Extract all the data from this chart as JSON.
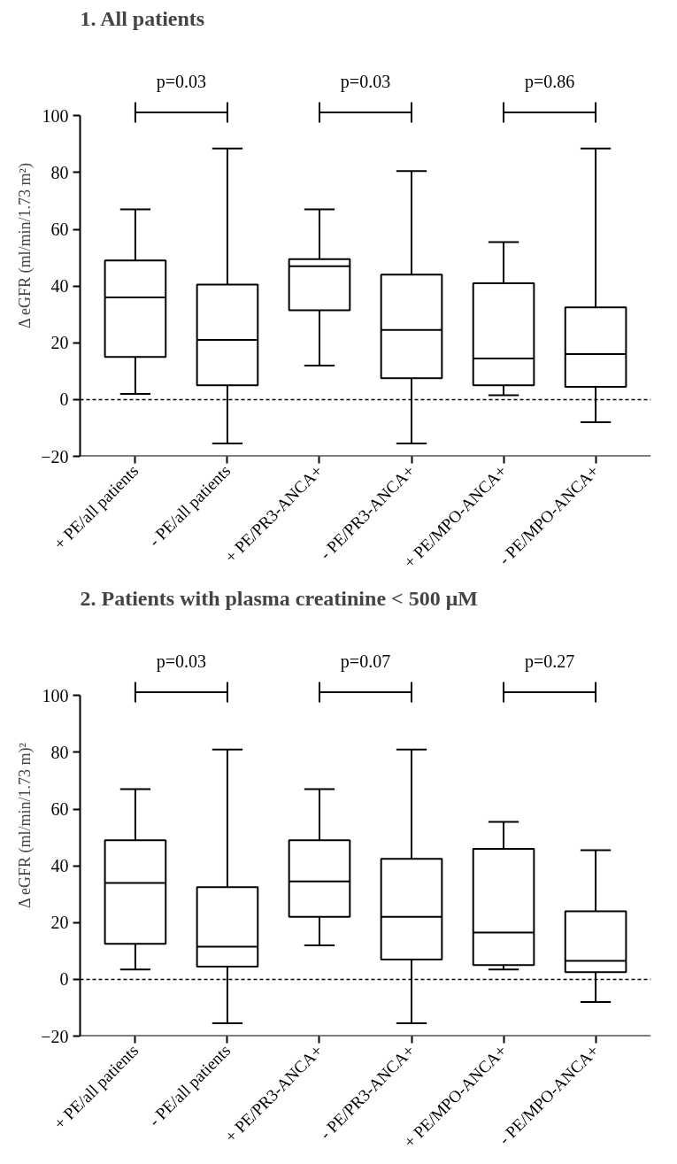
{
  "chart_data": [
    {
      "type": "box",
      "title": "1.          All patients",
      "ylabel": "Δ eGFR (ml/min/1.73 m²)",
      "categories": [
        "+ PE/all patients",
        "- PE/all patients",
        "+ PE/PR3-ANCA+",
        "- PE/PR3-ANCA+",
        "+ PE/MPO-ANCA+",
        "- PE/MPO-ANCA+"
      ],
      "boxes": [
        {
          "low": 2,
          "q1": 15,
          "median": 36,
          "q3": 49,
          "high": 67
        },
        {
          "low": -15.5,
          "q1": 5,
          "median": 21,
          "q3": 40.5,
          "high": 88.5
        },
        {
          "low": 12,
          "q1": 31.5,
          "median": 47,
          "q3": 49.5,
          "high": 67
        },
        {
          "low": -15.5,
          "q1": 7.5,
          "median": 24.5,
          "q3": 44,
          "high": 80.5
        },
        {
          "low": 1.5,
          "q1": 5,
          "median": 14.5,
          "q3": 41,
          "high": 55.5
        },
        {
          "low": -8,
          "q1": 4.5,
          "median": 16,
          "q3": 32.5,
          "high": 88.5
        }
      ],
      "ylim": [
        -20,
        100
      ],
      "yticks": [
        -20,
        0,
        20,
        40,
        60,
        80,
        100
      ],
      "grid": false,
      "ref_lines": [
        {
          "axis": "y",
          "value": 0,
          "line_style": "dashed"
        }
      ],
      "annotations": [
        "p=0.03",
        "p=0.03",
        "p=0.86"
      ]
    },
    {
      "type": "box",
      "title": "2.          Patients with plasma creatinine < 500 μM",
      "ylabel": "Δ eGFR (ml/min/1.73 m)²",
      "categories": [
        "+ PE/all patients",
        "- PE/all patients",
        "+ PE/PR3-ANCA+",
        "- PE/PR3-ANCA+",
        "+ PE/MPO-ANCA+",
        "- PE/MPO-ANCA+"
      ],
      "boxes": [
        {
          "low": 3.5,
          "q1": 12.5,
          "median": 34,
          "q3": 49,
          "high": 67
        },
        {
          "low": -15.5,
          "q1": 4.5,
          "median": 11.5,
          "q3": 32.5,
          "high": 81
        },
        {
          "low": 12,
          "q1": 22,
          "median": 34.5,
          "q3": 49,
          "high": 67
        },
        {
          "low": -15.5,
          "q1": 7,
          "median": 22,
          "q3": 42.5,
          "high": 81
        },
        {
          "low": 3.5,
          "q1": 5,
          "median": 16.5,
          "q3": 46,
          "high": 55.5
        },
        {
          "low": -8,
          "q1": 2.5,
          "median": 6.5,
          "q3": 24,
          "high": 45.5
        }
      ],
      "ylim": [
        -20,
        100
      ],
      "yticks": [
        -20,
        0,
        20,
        40,
        60,
        80,
        100
      ],
      "grid": false,
      "ref_lines": [
        {
          "axis": "y",
          "value": 0,
          "line_style": "dashed"
        }
      ],
      "annotations": [
        "p=0.03",
        "p=0.07",
        "p=0.27"
      ]
    }
  ]
}
